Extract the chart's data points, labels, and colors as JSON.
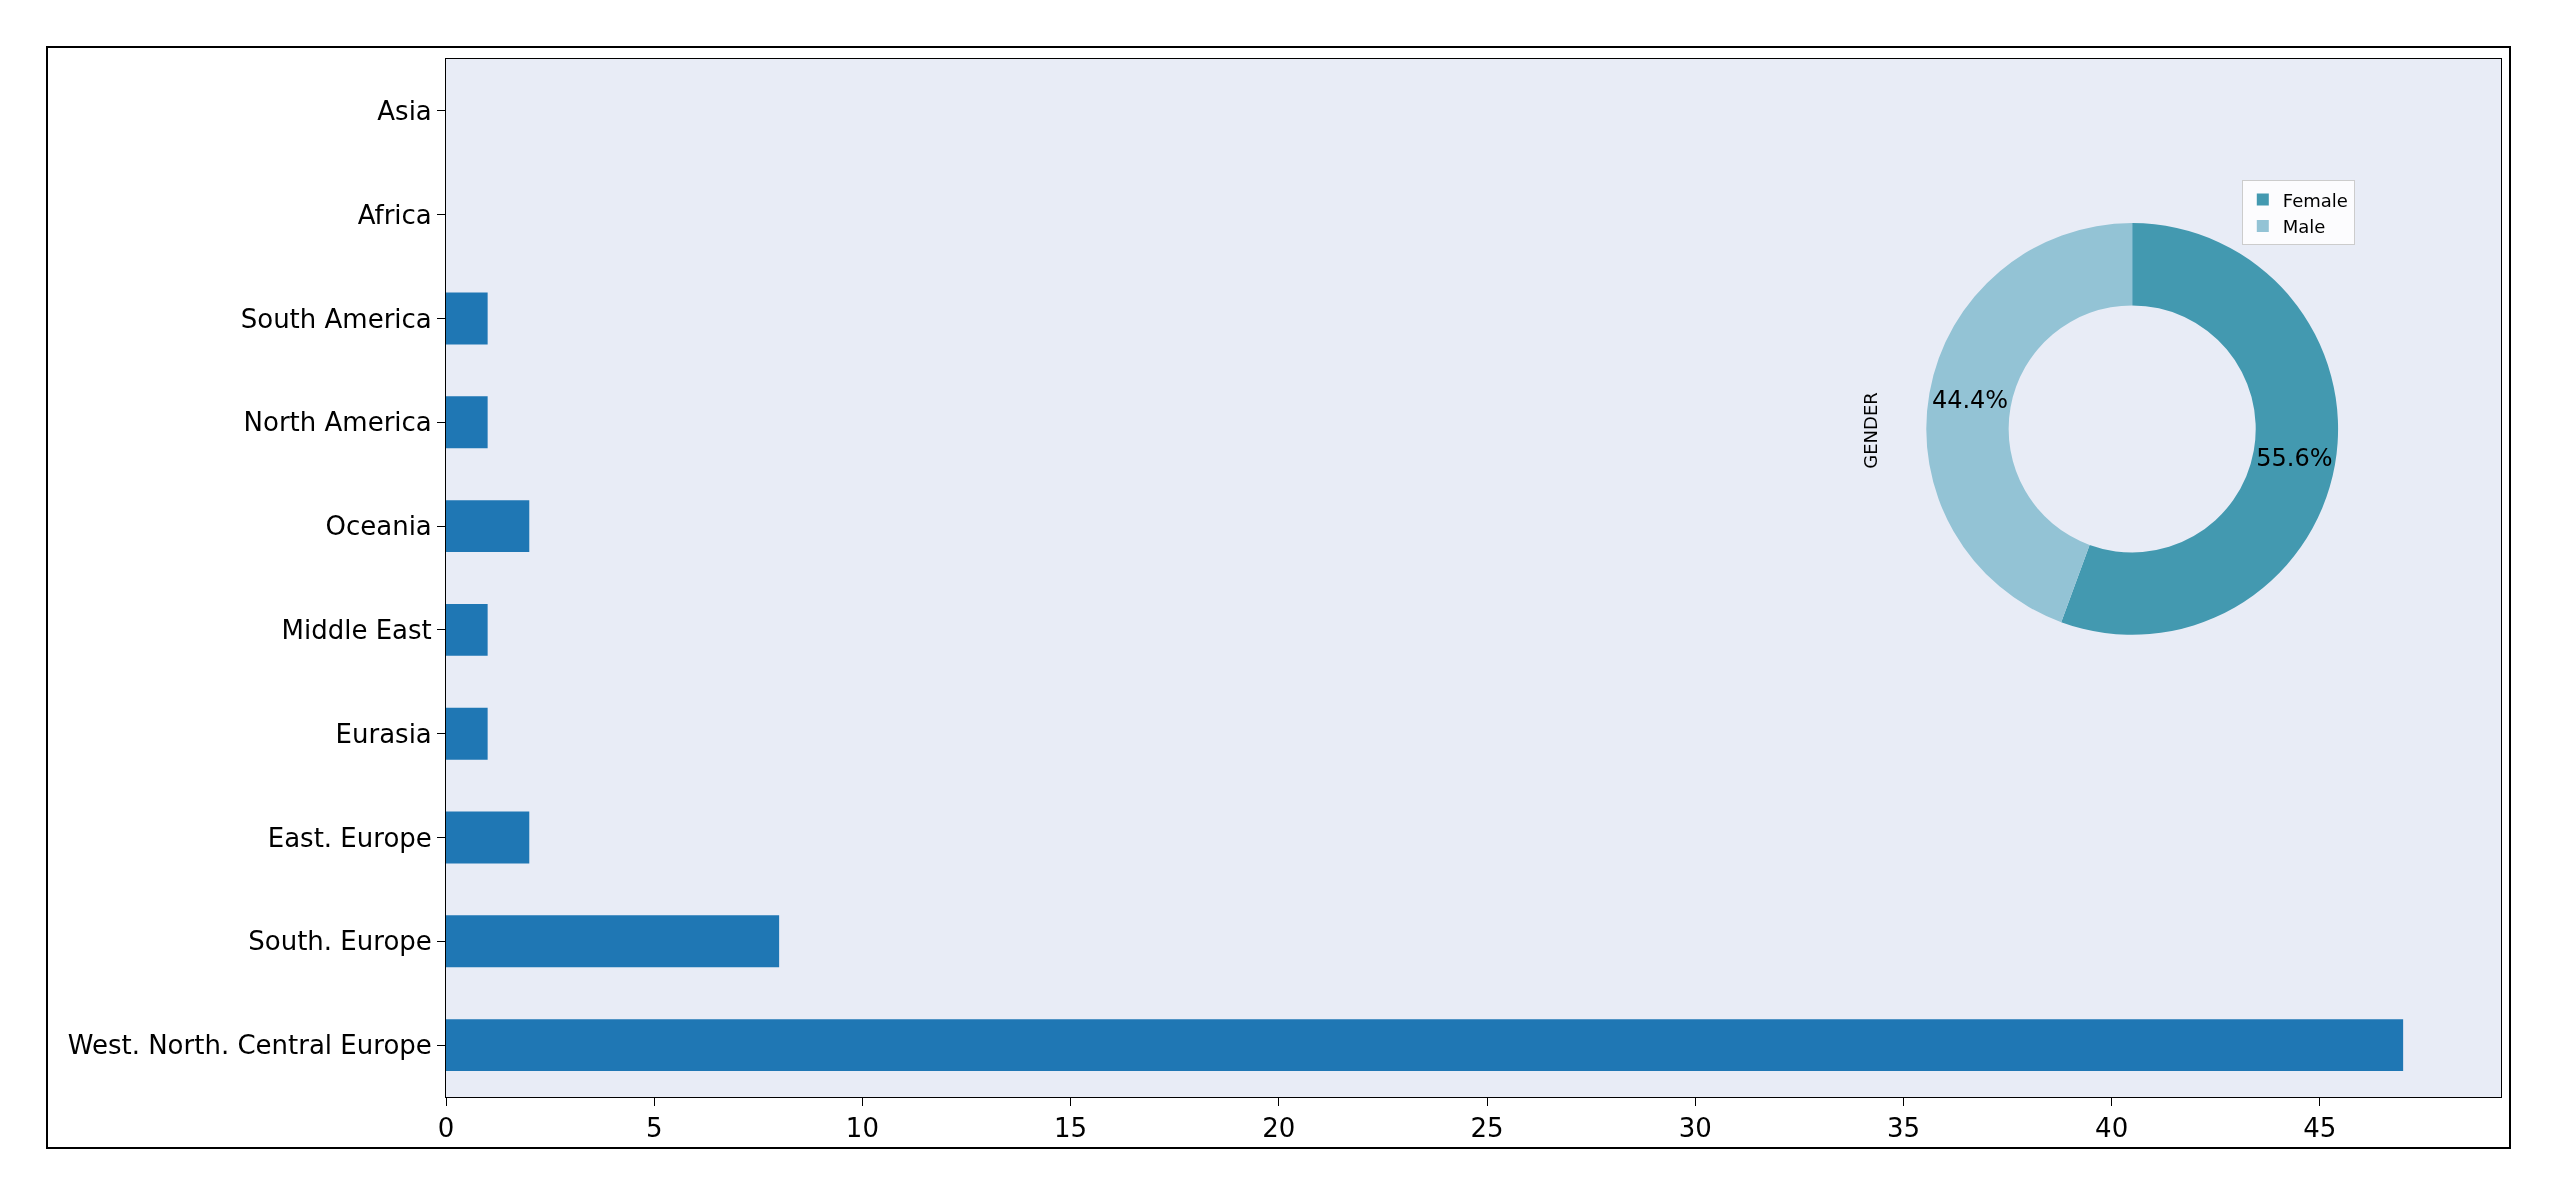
{
  "chart_data": [
    {
      "type": "bar",
      "orientation": "horizontal",
      "categories": [
        "Asia",
        "Africa",
        "South America",
        "North America",
        "Oceania",
        "Middle East",
        "Eurasia",
        "East. Europe",
        "South. Europe",
        "West. North. Central Europe"
      ],
      "values": [
        0,
        0,
        1,
        1,
        2,
        1,
        1,
        2,
        8,
        47
      ],
      "color": "#1f77b4",
      "xlim": [
        0,
        49.35
      ],
      "xticks": [
        0,
        5,
        10,
        15,
        20,
        25,
        30,
        35,
        40,
        45
      ],
      "grid": false
    },
    {
      "type": "donut",
      "ylabel": "GENDER",
      "categories": [
        "Female",
        "Male"
      ],
      "values": [
        55.6,
        44.4
      ],
      "colors": [
        "#4399b0",
        "#93c3d5"
      ],
      "value_labels": [
        "55.6%",
        "44.4%"
      ],
      "legend": "top right"
    }
  ]
}
